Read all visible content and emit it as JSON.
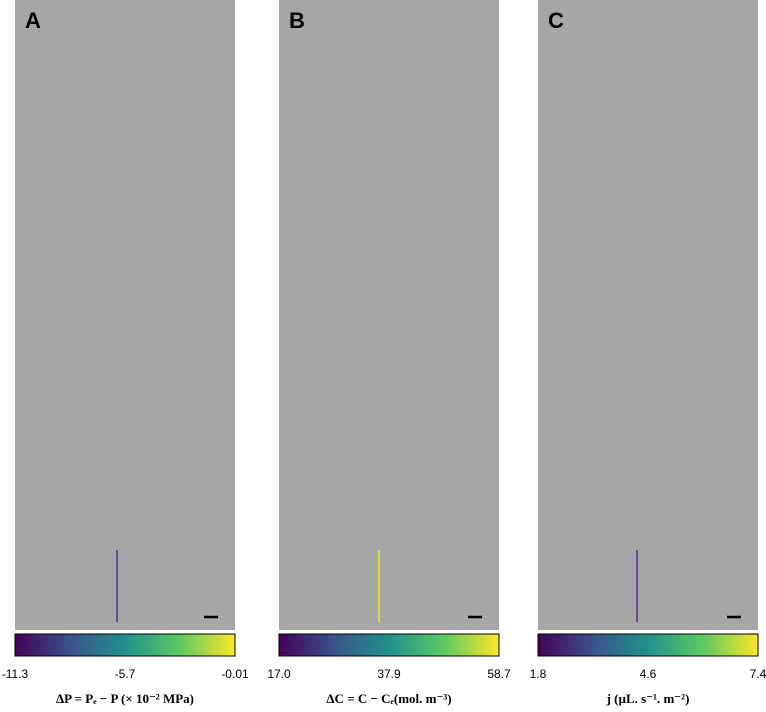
{
  "panels": [
    {
      "label": "A",
      "colorbar": {
        "ticks": [
          "-11.3",
          "-5.7",
          "-0.01"
        ],
        "title": "ΔP = Pₑ − P (× 10⁻² MPa)"
      }
    },
    {
      "label": "B",
      "colorbar": {
        "ticks": [
          "17.0",
          "37.9",
          "58.7"
        ],
        "title": "ΔC = C − Cₑ(mol. m⁻³)"
      }
    },
    {
      "label": "C",
      "colorbar": {
        "ticks": [
          "1.8",
          "4.6",
          "7.4"
        ],
        "title": "j (µL. s⁻¹. m⁻²)"
      }
    }
  ]
}
